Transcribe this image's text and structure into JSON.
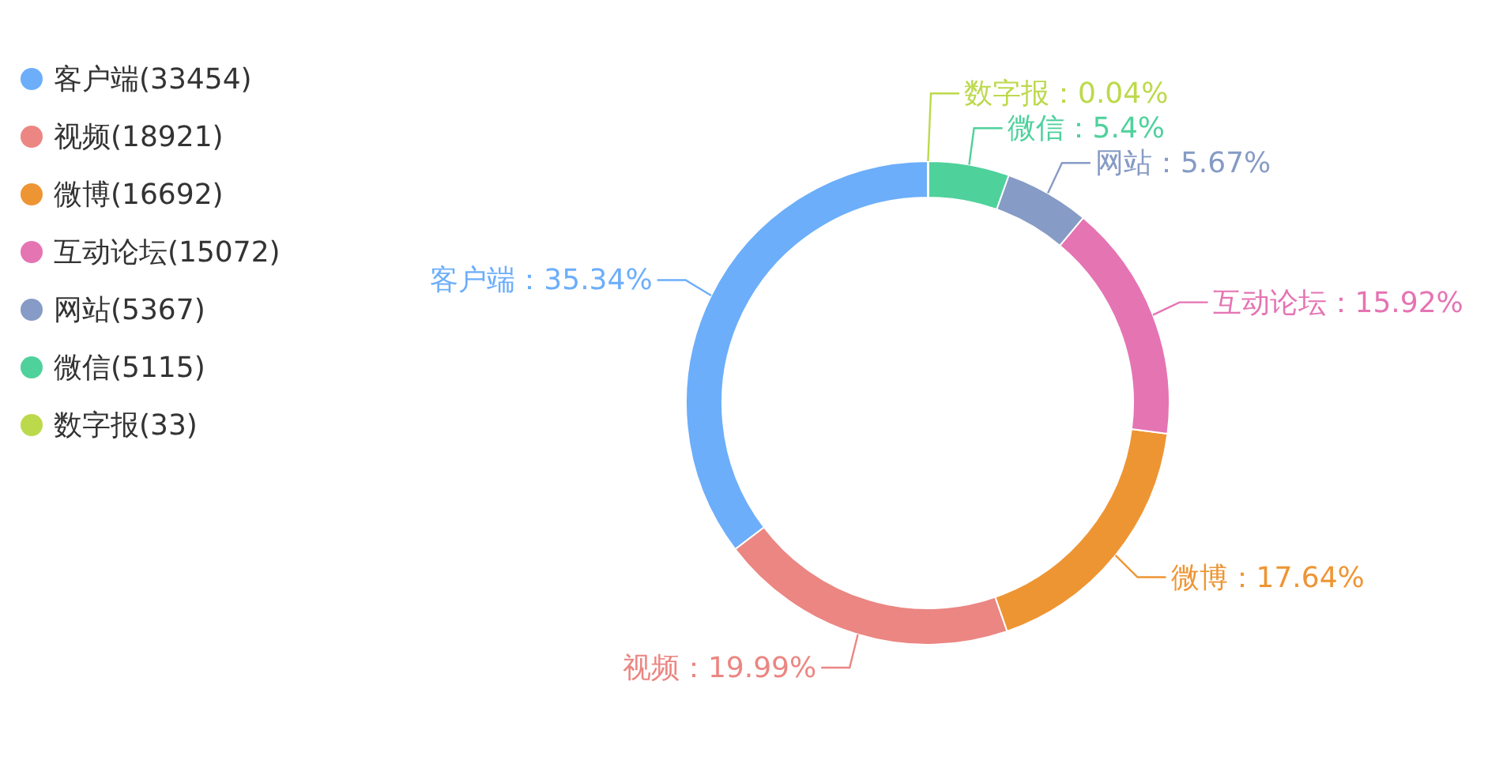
{
  "chart_data": {
    "type": "donut",
    "categories": [
      "客户端",
      "视频",
      "微博",
      "互动论坛",
      "网站",
      "微信",
      "数字报"
    ],
    "values": [
      35.34,
      19.99,
      17.64,
      15.92,
      5.67,
      5.4,
      0.04
    ],
    "value_labels": [
      "：35.34%",
      "：19.99%",
      "：17.64%",
      "：15.92%",
      "：5.67%",
      "：5.4%",
      "：0.04%"
    ],
    "annotations": [
      "(33454)",
      "(18921)",
      "(16692)",
      "(15072)",
      "(5367)",
      "(5115)",
      "(33)"
    ],
    "colors": [
      "#6caefa",
      "#eb8682",
      "#ee9533",
      "#e574b3",
      "#869bc5",
      "#4fd19c",
      "#bcd94c"
    ],
    "legend": "top left"
  }
}
